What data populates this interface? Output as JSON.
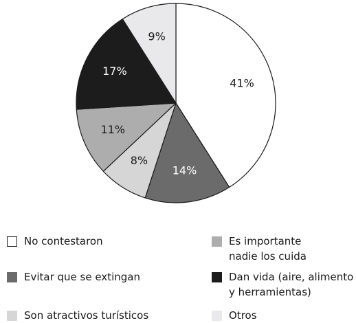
{
  "chart_data": {
    "type": "pie",
    "title": "",
    "start_angle_deg": 0,
    "direction": "clockwise",
    "slices": [
      {
        "label": "No contestaron",
        "value": 41,
        "display": "41%",
        "color": "#ffffff",
        "text_color": "#1a1a1a"
      },
      {
        "label": "Evitar que se extingan",
        "value": 14,
        "display": "14%",
        "color": "#6b6b6b",
        "text_color": "#ffffff"
      },
      {
        "label": "Son atractivos turísticos",
        "value": 8,
        "display": "8%",
        "color": "#d6d6d6",
        "text_color": "#1a1a1a"
      },
      {
        "label": "Es importante nadie los cuida",
        "value": 11,
        "display": "11%",
        "color": "#adadad",
        "text_color": "#1a1a1a"
      },
      {
        "label": "Dan vida (aire, alimento y herramientas)",
        "value": 17,
        "display": "17%",
        "color": "#1c1c1c",
        "text_color": "#ffffff"
      },
      {
        "label": "Otros",
        "value": 9,
        "display": "9%",
        "color": "#e9e9eb",
        "text_color": "#1a1a1a"
      }
    ],
    "stroke_color": "#1a1a1a"
  },
  "legend": {
    "items": [
      {
        "lines": [
          "No contestaron"
        ],
        "color": "#ffffff",
        "bordered": true
      },
      {
        "lines": [
          "Es importante",
          "nadie los cuida"
        ],
        "color": "#adadad",
        "bordered": false
      },
      {
        "lines": [
          "Evitar que se extingan"
        ],
        "color": "#6b6b6b",
        "bordered": false
      },
      {
        "lines": [
          "Dan vida (aire, alimento",
          "y herramientas)"
        ],
        "color": "#1c1c1c",
        "bordered": false
      },
      {
        "lines": [
          "Son atractivos turísticos"
        ],
        "color": "#d6d6d6",
        "bordered": false
      },
      {
        "lines": [
          "Otros"
        ],
        "color": "#e9e9eb",
        "bordered": false
      }
    ]
  }
}
